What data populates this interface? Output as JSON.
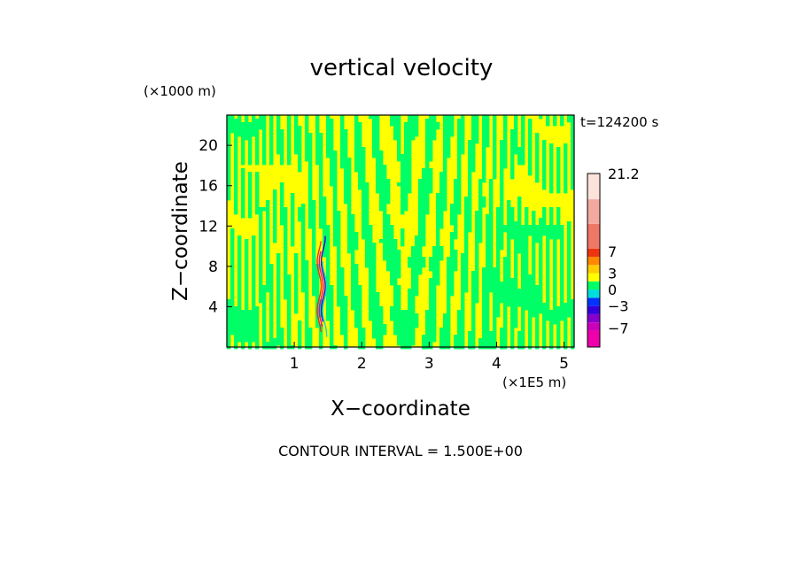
{
  "chart_data": {
    "type": "heatmap",
    "title": "vertical velocity",
    "time_label": "t=124200 s",
    "xlabel": "X−coordinate",
    "ylabel": "Z−coordinate",
    "x_unit": "(×1E5 m)",
    "y_unit": "(×1000 m)",
    "xlim": [
      0,
      5.15
    ],
    "ylim": [
      0,
      23
    ],
    "x_ticks": [
      1,
      2,
      3,
      4,
      5
    ],
    "x_tick_labels": [
      "1",
      "2",
      "3",
      "4",
      "5"
    ],
    "y_ticks": [
      4,
      8,
      12,
      16,
      20
    ],
    "y_tick_labels": [
      "4",
      "8",
      "12",
      "16",
      "20"
    ],
    "contour_note": "CONTOUR INTERVAL = 1.500E+00",
    "colorbar": {
      "min": -10.5,
      "max": 21.2,
      "tick_values": [
        21.2,
        7,
        3,
        0,
        -3,
        -7
      ],
      "tick_labels": [
        "21.2",
        "7",
        "3",
        "0",
        "−3",
        "−7"
      ],
      "bands": [
        {
          "from": -10.5,
          "to": -7.5,
          "color": "#ee00aa"
        },
        {
          "from": -7.5,
          "to": -6.0,
          "color": "#cc00bb"
        },
        {
          "from": -6.0,
          "to": -4.5,
          "color": "#8800cc"
        },
        {
          "from": -4.5,
          "to": -3.0,
          "color": "#3300dd"
        },
        {
          "from": -3.0,
          "to": -1.5,
          "color": "#0033ff"
        },
        {
          "from": -1.5,
          "to": 0.0,
          "color": "#00dddd"
        },
        {
          "from": 0.0,
          "to": 1.5,
          "color": "#00ff66"
        },
        {
          "from": 1.5,
          "to": 3.0,
          "color": "#ffff00"
        },
        {
          "from": 3.0,
          "to": 4.5,
          "color": "#ffcc00"
        },
        {
          "from": 4.5,
          "to": 6.0,
          "color": "#ff8800"
        },
        {
          "from": 6.0,
          "to": 7.5,
          "color": "#ee3311"
        },
        {
          "from": 7.5,
          "to": 12.0,
          "color": "#ee7766"
        },
        {
          "from": 12.0,
          "to": 16.5,
          "color": "#f4a9a0"
        },
        {
          "from": 16.5,
          "to": 21.2,
          "color": "#fbe3dc"
        }
      ]
    },
    "field": {
      "background_color": "#ffff00",
      "dominant_colors": [
        "#00ff66",
        "#ffff00"
      ],
      "shear_line_colors": [
        "#ee00aa",
        "#3300dd",
        "#ee3311",
        "#00dddd"
      ],
      "shear_line_x": 1.4
    }
  }
}
